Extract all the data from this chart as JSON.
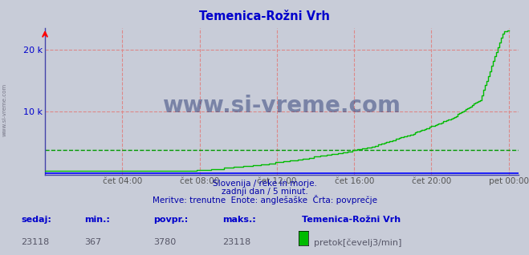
{
  "title": "Temenica-Rožni Vrh",
  "title_color": "#0000cc",
  "bg_color": "#c8ccd8",
  "plot_bg_color": "#c8ccd8",
  "line_color": "#00bb00",
  "axis_color": "#0000cc",
  "avg_line_color": "#009900",
  "avg_value": 3780,
  "ymax": 23500,
  "ytick_labels": [
    "",
    "10 k",
    "20 k"
  ],
  "xtick_labels": [
    "čet 04:00",
    "čet 08:00",
    "čet 12:00",
    "čet 16:00",
    "čet 20:00",
    "pet 00:00"
  ],
  "xtick_positions": [
    4,
    8,
    12,
    16,
    20,
    24
  ],
  "grid_color_v": "#dd8888",
  "grid_color_h": "#dd8888",
  "watermark": "www.si-vreme.com",
  "watermark_color": "#1a2a6a",
  "footer_line1": "Slovenija / reke in morje.",
  "footer_line2": "zadnji dan / 5 minut.",
  "footer_line3": "Meritve: trenutne  Enote: anglešaške  Črta: povprečje",
  "footer_color": "#0000aa",
  "stats_labels": [
    "sedaj:",
    "min.:",
    "povpr.:",
    "maks.:"
  ],
  "stats_values": [
    "23118",
    "367",
    "3780",
    "23118"
  ],
  "stats_label_color": "#0000cc",
  "legend_label": "pretok[čevelj3/min]",
  "legend_station": "Temenica-Rožni Vrh",
  "sidebar_label": "www.si-vreme.com",
  "sidebar_color": "#777788"
}
